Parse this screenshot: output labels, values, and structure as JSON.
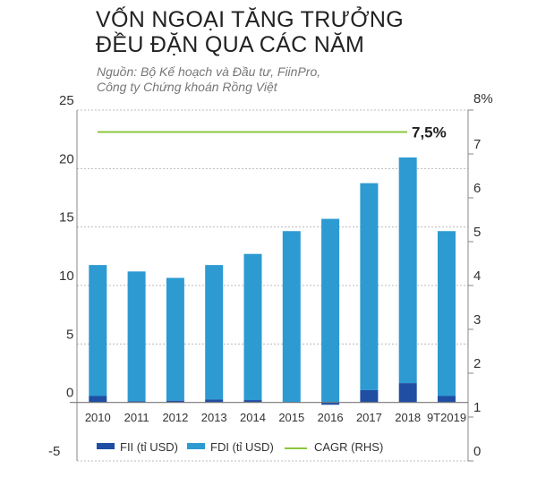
{
  "chart_data": {
    "type": "bar",
    "stacked": true,
    "title": "VỐN NGOẠI TĂNG TRƯỞNG ĐỀU ĐẶN QUA CÁC NĂM",
    "title_lines": [
      "VỐN NGOẠI TĂNG TRƯỞNG",
      "ĐỀU ĐẶN QUA CÁC NĂM"
    ],
    "subtitle_lines": [
      "Nguồn: Bộ Kế hoạch và Đầu tư, FiinPro,",
      "Công ty Chứng khoán Rồng Việt"
    ],
    "categories": [
      "2010",
      "2011",
      "2012",
      "2013",
      "2014",
      "2015",
      "2016",
      "2017",
      "2018",
      "9T2019"
    ],
    "series": [
      {
        "name": "FII (tỉ USD)",
        "color": "#1f4ea3",
        "axis": "left",
        "values": [
          0.55,
          0.1,
          0.15,
          0.25,
          0.2,
          0.05,
          -0.2,
          1.05,
          1.65,
          0.55
        ]
      },
      {
        "name": "FDI (tỉ USD)",
        "color": "#2d9bd2",
        "axis": "left",
        "values": [
          11.2,
          11.1,
          10.5,
          11.5,
          12.5,
          14.6,
          15.7,
          17.7,
          19.3,
          14.1
        ]
      },
      {
        "name": "CAGR (RHS)",
        "type": "line",
        "color": "#8cc63f",
        "axis": "right",
        "value": 7.5
      }
    ],
    "annotation": "7,5%",
    "ylim": [
      -5,
      25
    ],
    "yticks": [
      "25",
      "20",
      "15",
      "10",
      "5",
      "0",
      "-5"
    ],
    "ytick_values": [
      25,
      20,
      15,
      10,
      5,
      0,
      -5
    ],
    "y2lim": [
      0,
      8
    ],
    "y2ticks": [
      "8%",
      "7",
      "6",
      "5",
      "4",
      "3",
      "2",
      "1",
      "0"
    ],
    "y2tick_values": [
      8,
      7,
      6,
      5,
      4,
      3,
      2,
      1,
      0
    ],
    "grid": true,
    "legend": "bottom"
  }
}
